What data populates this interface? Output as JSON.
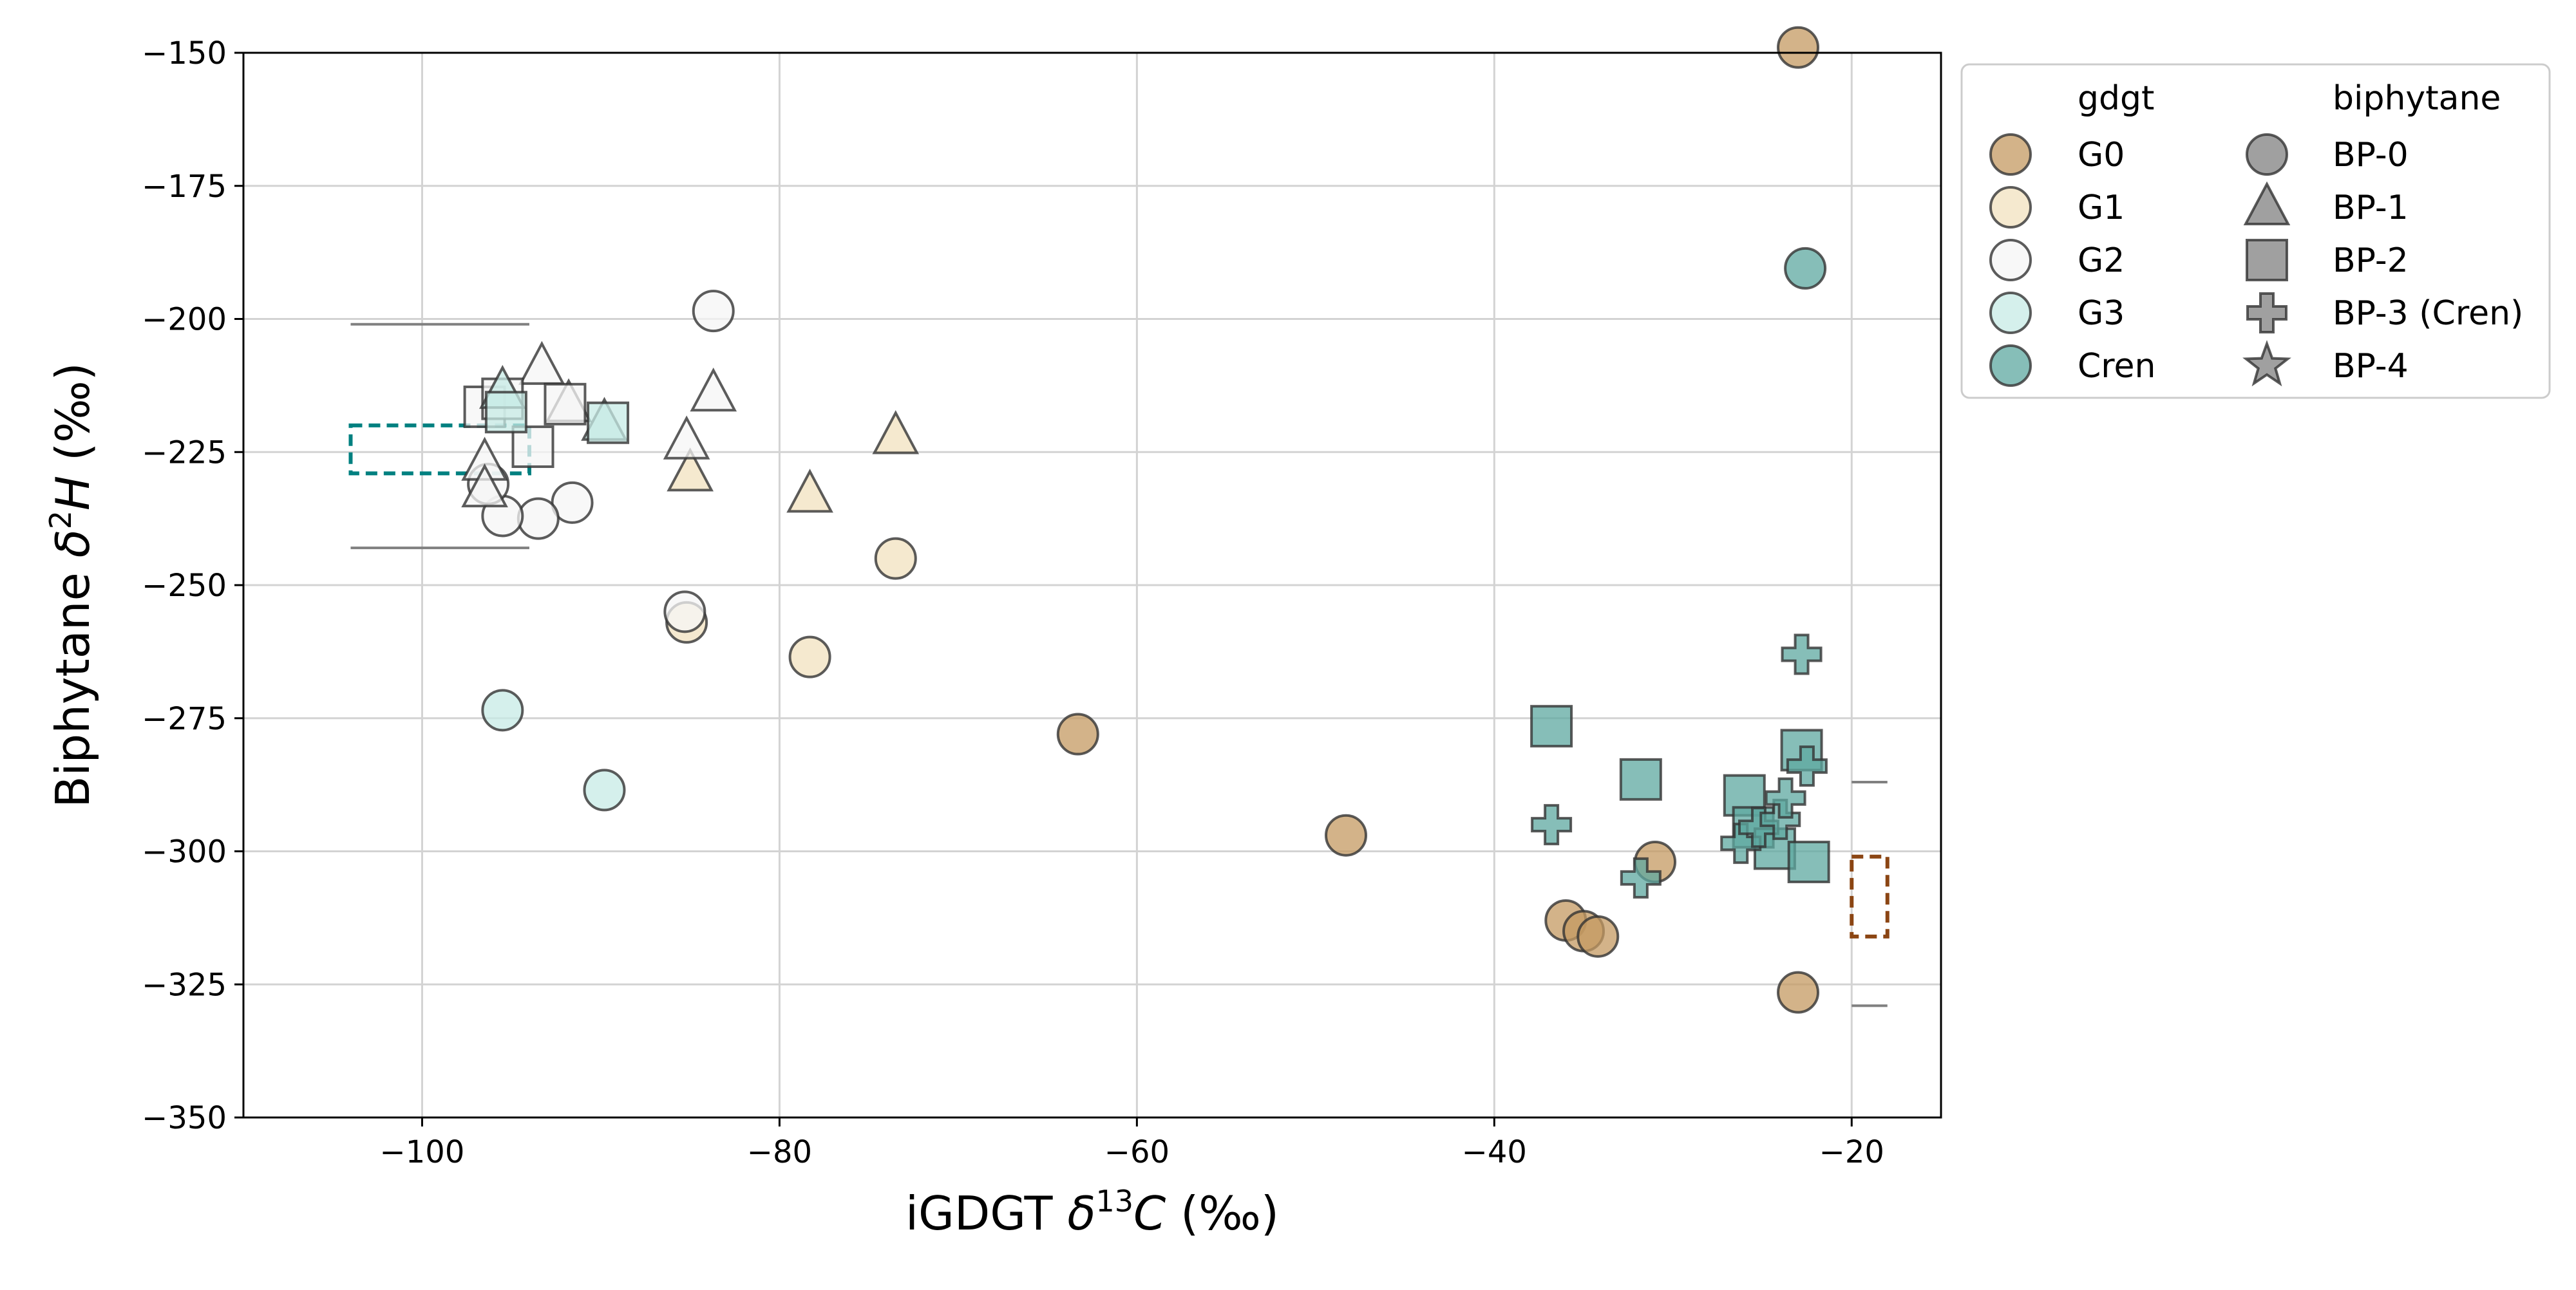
{
  "chart_data": {
    "type": "scatter",
    "xlabel": "iGDGT δ13C (‰)",
    "ylabel": "Biphytane δ2H (‰)",
    "xlim": [
      -110,
      -15
    ],
    "ylim": [
      -350,
      -150
    ],
    "xticks": [
      -100,
      -80,
      -60,
      -40,
      -20
    ],
    "yticks": [
      -350,
      -325,
      -300,
      -275,
      -250,
      -225,
      -200,
      -175,
      -150
    ],
    "grid": true,
    "legend_position": "outside-right-top",
    "legend": {
      "gdgt_title": "gdgt",
      "gdgt_entries": [
        {
          "label": "G0",
          "color": "#c49a62"
        },
        {
          "label": "G1",
          "color": "#f1e2bf"
        },
        {
          "label": "G2",
          "color": "#f5f5f5"
        },
        {
          "label": "G3",
          "color": "#c7ebe5"
        },
        {
          "label": "Cren",
          "color": "#5ea8a0"
        }
      ],
      "biphytane_title": "biphytane",
      "biphytane_entries": [
        {
          "label": "BP-0",
          "marker": "circle"
        },
        {
          "label": "BP-1",
          "marker": "triangle"
        },
        {
          "label": "BP-2",
          "marker": "square"
        },
        {
          "label": "BP-3 (Cren)",
          "marker": "plus"
        },
        {
          "label": "BP-4",
          "marker": "star"
        }
      ]
    },
    "series": [
      {
        "group": "G0",
        "marker": "circle",
        "points": [
          [
            -63.3,
            -278
          ],
          [
            -48.3,
            -297
          ],
          [
            -36,
            -313
          ],
          [
            -35,
            -315
          ],
          [
            -34.2,
            -316
          ],
          [
            -31,
            -302
          ],
          [
            -23,
            -326.5
          ],
          [
            -23,
            -149
          ]
        ]
      },
      {
        "group": "G1",
        "marker": "circle",
        "points": [
          [
            -73.5,
            -245
          ],
          [
            -78.3,
            -263.5
          ],
          [
            -85.2,
            -257
          ]
        ]
      },
      {
        "group": "G1",
        "marker": "triangle",
        "points": [
          [
            -73.5,
            -222
          ],
          [
            -78.3,
            -233
          ],
          [
            -85,
            -229
          ]
        ]
      },
      {
        "group": "G2",
        "marker": "circle",
        "points": [
          [
            -83.7,
            -198.5
          ],
          [
            -85.3,
            -255
          ],
          [
            -91.6,
            -234.5
          ],
          [
            -93.5,
            -237.5
          ],
          [
            -95.5,
            -237
          ],
          [
            -96.3,
            -231
          ]
        ]
      },
      {
        "group": "G2",
        "marker": "triangle",
        "points": [
          [
            -83.7,
            -214
          ],
          [
            -85.2,
            -223
          ],
          [
            -91.8,
            -216
          ],
          [
            -93.3,
            -209
          ],
          [
            -96.5,
            -227
          ],
          [
            -96.5,
            -232
          ]
        ]
      },
      {
        "group": "G2",
        "marker": "square",
        "points": [
          [
            -96.5,
            -216.5
          ],
          [
            -95.5,
            -215
          ],
          [
            -92,
            -216
          ],
          [
            -93.8,
            -224
          ]
        ]
      },
      {
        "group": "G3",
        "marker": "circle",
        "points": [
          [
            -95.5,
            -273.5
          ],
          [
            -89.8,
            -288.5
          ]
        ]
      },
      {
        "group": "G3",
        "marker": "triangle",
        "points": [
          [
            -95.5,
            -213.5
          ],
          [
            -89.8,
            -219.5
          ]
        ]
      },
      {
        "group": "G3",
        "marker": "square",
        "points": [
          [
            -95.3,
            -217.5
          ],
          [
            -89.6,
            -219.5
          ]
        ]
      },
      {
        "group": "Cren",
        "marker": "circle",
        "points": [
          [
            -22.6,
            -190.5
          ]
        ]
      },
      {
        "group": "Cren",
        "marker": "square",
        "points": [
          [
            -36.8,
            -276.5
          ],
          [
            -31.8,
            -286.5
          ],
          [
            -26,
            -289.5
          ],
          [
            -25.5,
            -295.5
          ],
          [
            -24.3,
            -299.5
          ],
          [
            -22.8,
            -281
          ],
          [
            -22.4,
            -302
          ]
        ]
      },
      {
        "group": "Cren",
        "marker": "plus",
        "points": [
          [
            -36.8,
            -295
          ],
          [
            -31.8,
            -305
          ],
          [
            -26.2,
            -298.5
          ],
          [
            -25.2,
            -295.5
          ],
          [
            -24,
            -294
          ],
          [
            -23.7,
            -290
          ],
          [
            -22.8,
            -263
          ],
          [
            -22.5,
            -284
          ]
        ]
      }
    ],
    "ranges": [
      {
        "color": "#008080",
        "x": [
          -104,
          -94
        ],
        "y": [
          -229,
          -220
        ],
        "whisker_x": [
          -104,
          -94
        ],
        "whisker_y": [
          -243,
          -201
        ]
      },
      {
        "color": "#8b4513",
        "x": [
          -20,
          -18
        ],
        "y": [
          -316,
          -301
        ],
        "whisker_x": [
          -20,
          -18
        ],
        "whisker_y": [
          -329,
          -287
        ]
      }
    ]
  }
}
